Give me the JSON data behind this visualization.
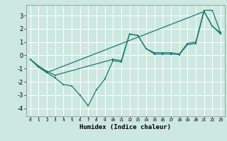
{
  "xlabel": "Humidex (Indice chaleur)",
  "ylabel": "",
  "background_color": "#cce8e0",
  "grid_color": "#ffffff",
  "line_color": "#1a7a6e",
  "xlim": [
    -0.5,
    23.5
  ],
  "ylim": [
    -4.6,
    3.8
  ],
  "xticks": [
    0,
    1,
    2,
    3,
    4,
    5,
    6,
    7,
    8,
    9,
    10,
    11,
    12,
    13,
    14,
    15,
    16,
    17,
    18,
    19,
    20,
    21,
    22,
    23
  ],
  "yticks": [
    -4,
    -3,
    -2,
    -1,
    0,
    1,
    2,
    3
  ],
  "series1": [
    [
      0,
      -0.3
    ],
    [
      1,
      -0.8
    ],
    [
      2,
      -1.3
    ],
    [
      3,
      -1.7
    ],
    [
      4,
      -2.2
    ],
    [
      5,
      -2.3
    ],
    [
      6,
      -3.0
    ],
    [
      7,
      -3.8
    ],
    [
      8,
      -2.6
    ],
    [
      9,
      -1.8
    ],
    [
      10,
      -0.4
    ],
    [
      11,
      -0.5
    ],
    [
      12,
      1.6
    ],
    [
      13,
      1.5
    ],
    [
      14,
      0.5
    ],
    [
      15,
      0.1
    ],
    [
      16,
      0.1
    ],
    [
      17,
      0.1
    ],
    [
      18,
      0.05
    ],
    [
      19,
      0.8
    ],
    [
      20,
      0.9
    ],
    [
      21,
      3.3
    ],
    [
      22,
      2.2
    ],
    [
      23,
      1.7
    ]
  ],
  "series2": [
    [
      0,
      -0.3
    ],
    [
      1,
      -0.8
    ],
    [
      2,
      -1.2
    ],
    [
      3,
      -1.5
    ],
    [
      10,
      -0.3
    ],
    [
      11,
      -0.4
    ],
    [
      12,
      1.6
    ],
    [
      13,
      1.5
    ],
    [
      14,
      0.5
    ],
    [
      15,
      0.2
    ],
    [
      16,
      0.2
    ],
    [
      17,
      0.2
    ],
    [
      18,
      0.1
    ],
    [
      19,
      0.9
    ],
    [
      20,
      1.0
    ],
    [
      21,
      3.4
    ],
    [
      22,
      3.4
    ],
    [
      23,
      1.7
    ]
  ],
  "series3": [
    [
      0,
      -0.3
    ],
    [
      1,
      -0.9
    ],
    [
      2,
      -1.3
    ],
    [
      21,
      3.3
    ],
    [
      22,
      2.2
    ],
    [
      23,
      1.6
    ]
  ]
}
